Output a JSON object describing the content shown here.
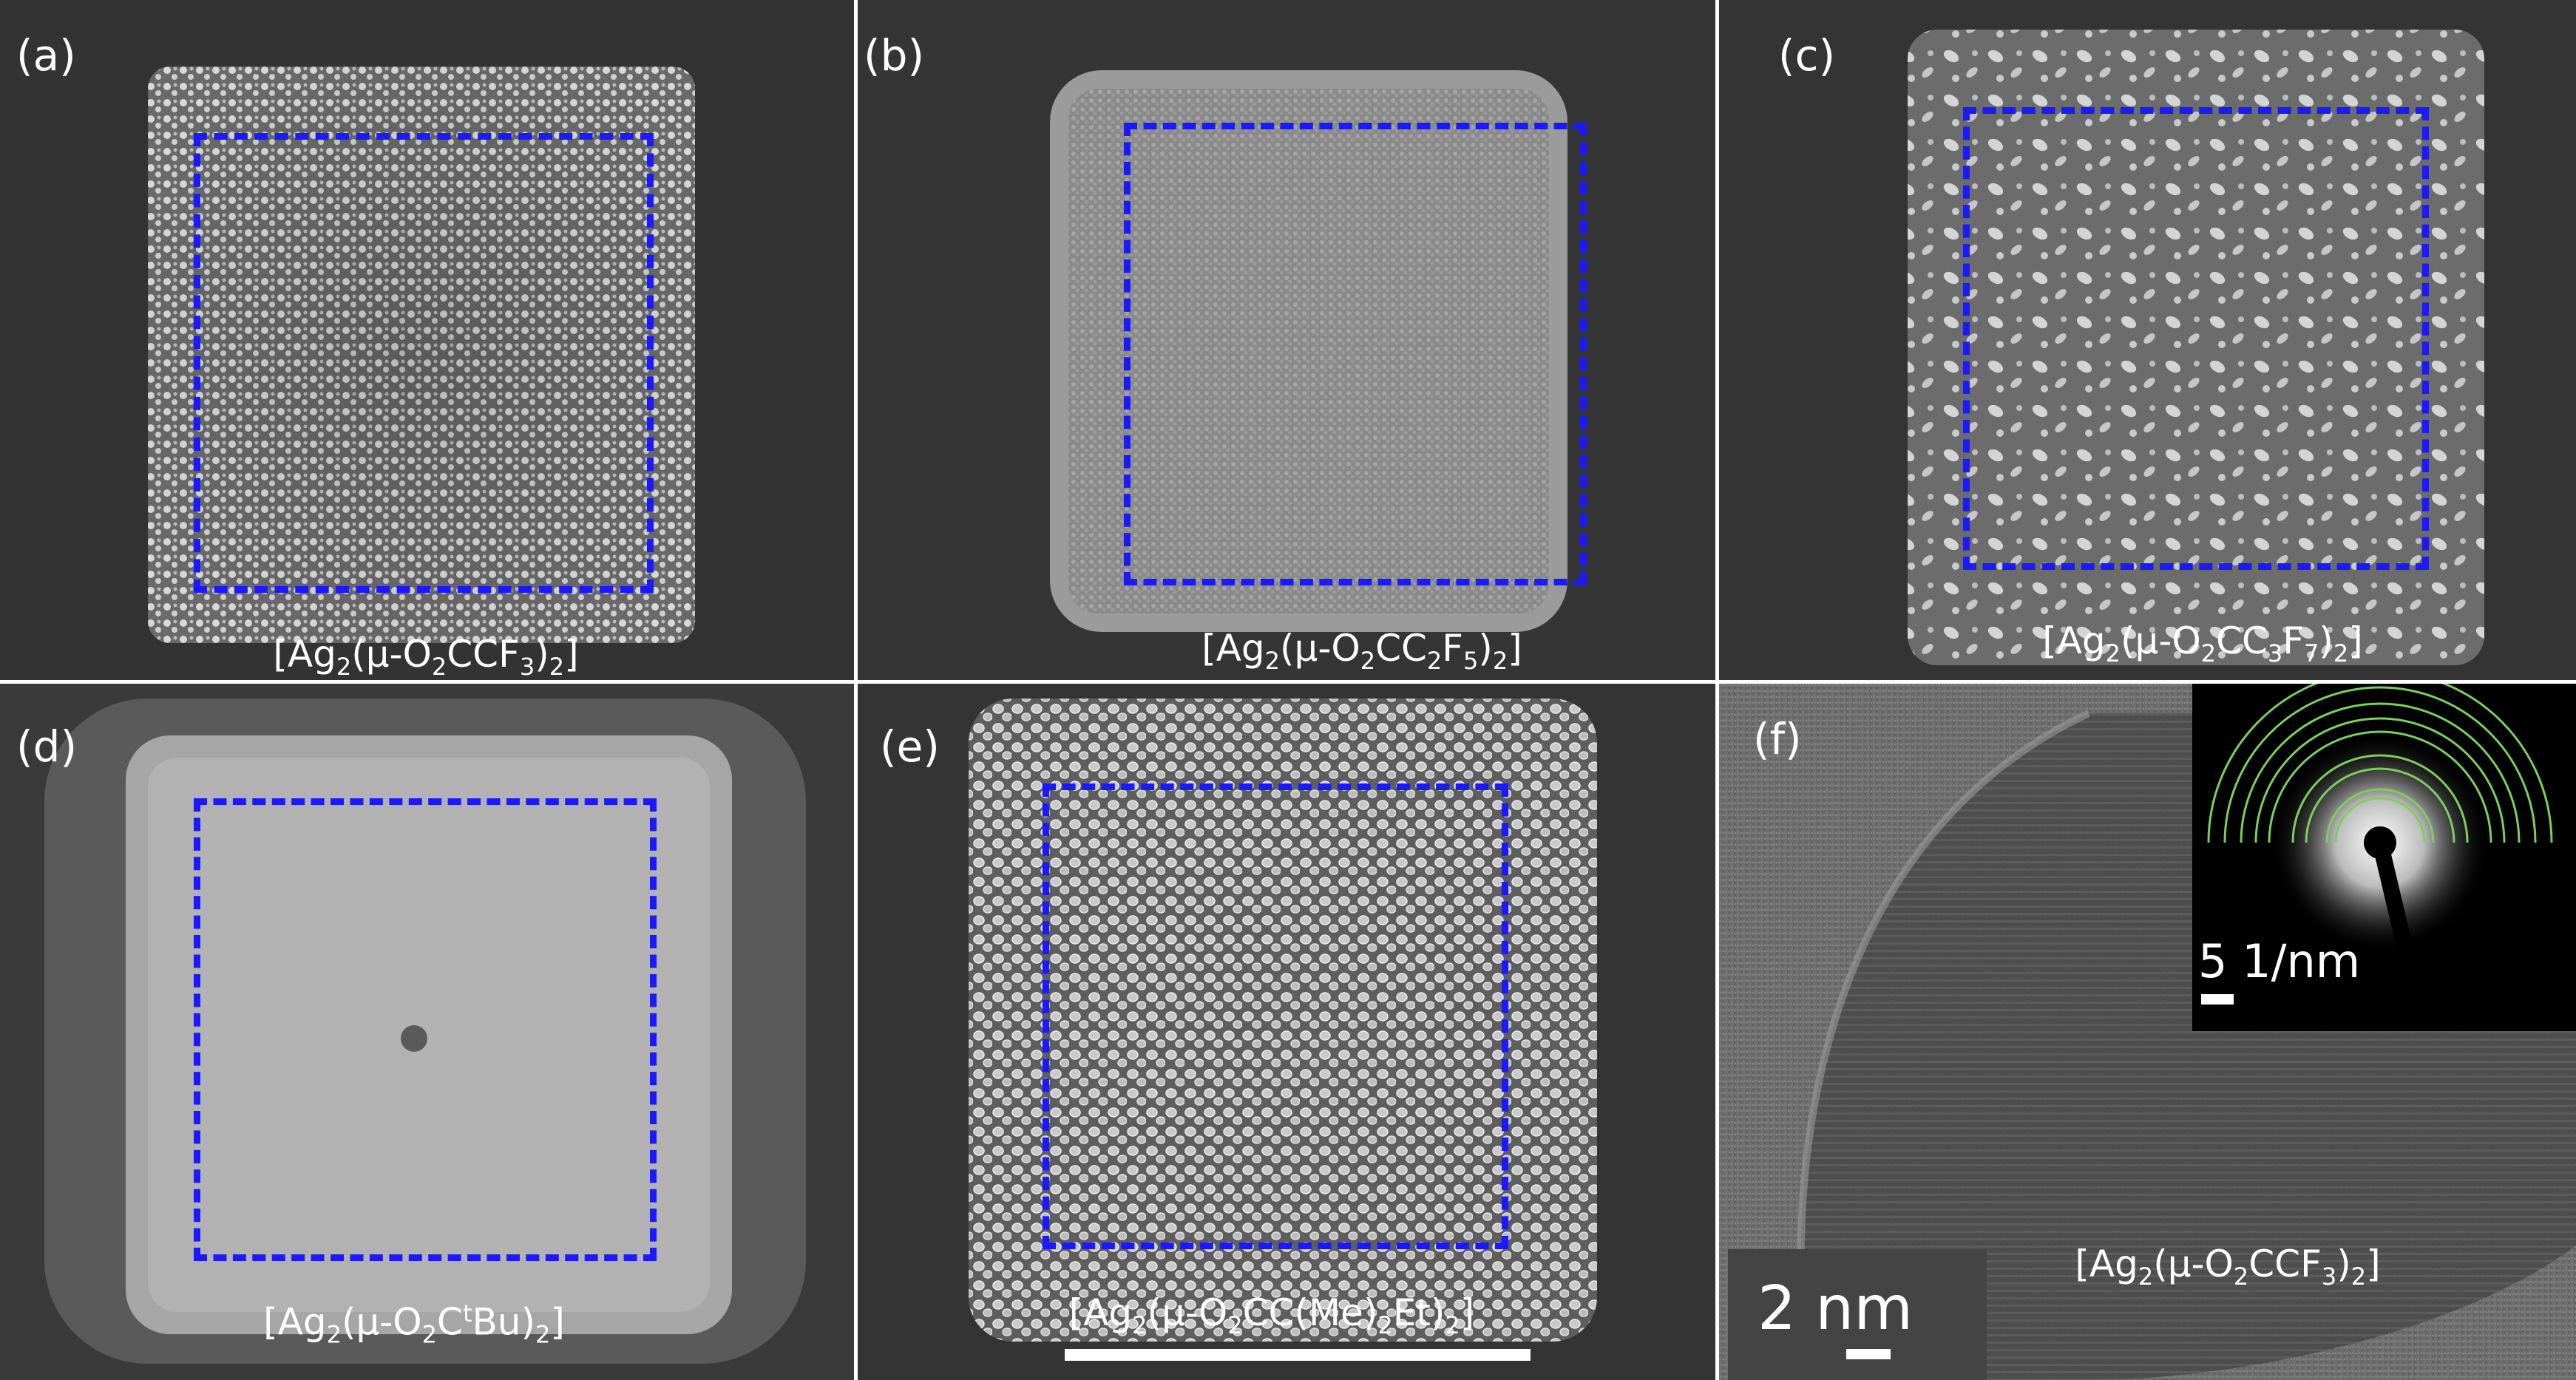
{
  "panels": [
    {
      "id": "a",
      "label": "(a)",
      "caption_pre": "[Ag",
      "caption_mid": "(μ-O",
      "caption_mid2": "CCF",
      "caption_end": ")",
      "caption_subs": [
        "2",
        "2",
        "3",
        "2"
      ]
    },
    {
      "id": "b",
      "label": "(b)",
      "caption_pre": "[Ag",
      "caption_mid": "(μ-O",
      "caption_mid2": "CC",
      "caption_mid3": "F",
      "caption_end": ")",
      "caption_subs": [
        "2",
        "2",
        "2",
        "5",
        "2"
      ]
    },
    {
      "id": "c",
      "label": "(c)",
      "caption_pre": "[Ag",
      "caption_mid": "(μ-O",
      "caption_mid2": "CC",
      "caption_mid3": "F",
      "caption_end": ")",
      "caption_subs": [
        "2",
        "2",
        "3",
        "7",
        "2"
      ]
    },
    {
      "id": "d",
      "label": "(d)",
      "caption_pre": "[Ag",
      "caption_mid": "(μ-O",
      "caption_mid2": "C",
      "caption_sup": "t",
      "caption_mid3": "Bu)",
      "caption_subs": [
        "2",
        "2",
        "2"
      ]
    },
    {
      "id": "e",
      "label": "(e)",
      "caption_pre": "[Ag",
      "caption_mid": "(μ-O",
      "caption_mid2": "CC(Me)",
      "caption_mid3": "Et)",
      "caption_subs": [
        "2",
        "2",
        "2",
        "2"
      ]
    },
    {
      "id": "f",
      "label": "(f)",
      "caption_pre": "[Ag",
      "caption_mid": "(μ-O",
      "caption_mid2": "CCF",
      "caption_end": ")",
      "caption_subs": [
        "2",
        "2",
        "3",
        "2"
      ]
    }
  ],
  "scale_bars": {
    "tem": "2 nm",
    "diffraction": "5 1/nm"
  },
  "colors": {
    "dashed_box": "#1a1aff",
    "ring_color": "#7bd05a"
  }
}
